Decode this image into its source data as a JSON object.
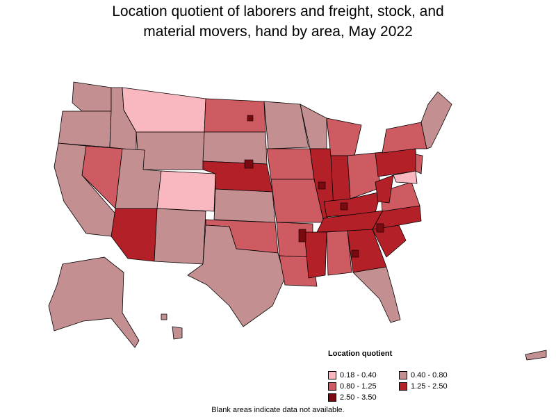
{
  "title": {
    "line1": "Location quotient of laborers and freight, stock, and",
    "line2": "material movers, hand by area, May 2022"
  },
  "legend": {
    "title": "Location quotient",
    "items": [
      {
        "label": "0.18 - 0.40",
        "color": "#f9b8c0"
      },
      {
        "label": "0.40 - 0.80",
        "color": "#c48f91"
      },
      {
        "label": "0.80 - 1.25",
        "color": "#cf5b62"
      },
      {
        "label": "1.25 - 2.50",
        "color": "#b32028"
      },
      {
        "label": "2.50 - 3.50",
        "color": "#7a0a10"
      }
    ]
  },
  "footnote": "Blank areas indicate data not available.",
  "map_colors": {
    "class_0": "#f9b8c0",
    "class_1": "#c48f91",
    "class_2": "#cf5b62",
    "class_3": "#b32028",
    "class_4": "#7a0a10",
    "border": "#000000"
  }
}
